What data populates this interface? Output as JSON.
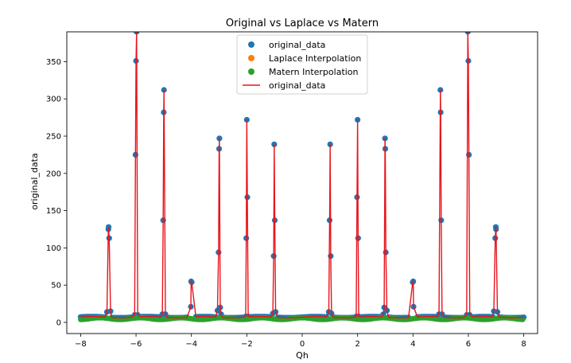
{
  "chart_data": {
    "type": "line",
    "title": "Original vs Laplace vs Matern",
    "xlabel": "Qh",
    "ylabel": "original_data",
    "xlim": [
      -8.5,
      8.5
    ],
    "ylim": [
      -15,
      390
    ],
    "x_ticks": [
      -8,
      -6,
      -4,
      -2,
      0,
      2,
      4,
      6,
      8
    ],
    "x_tick_labels": [
      "−8",
      "−6",
      "−4",
      "−2",
      "0",
      "2",
      "4",
      "6",
      "8"
    ],
    "y_ticks": [
      0,
      50,
      100,
      150,
      200,
      250,
      300,
      350
    ],
    "y_tick_labels": [
      "0",
      "50",
      "100",
      "150",
      "200",
      "250",
      "300",
      "350"
    ],
    "grid": false,
    "legend_position": "top-center",
    "baseline": 7,
    "peaks": [
      {
        "x": -7,
        "points": [
          [
            -7.05,
            14
          ],
          [
            -7.0,
            125
          ],
          [
            -6.99,
            128
          ],
          [
            -6.97,
            113
          ],
          [
            -6.92,
            15
          ]
        ]
      },
      {
        "x": -6,
        "points": [
          [
            -6.05,
            10
          ],
          [
            -6.02,
            225
          ],
          [
            -6.0,
            351
          ],
          [
            -5.98,
            390
          ],
          [
            -5.94,
            10
          ]
        ]
      },
      {
        "x": -5,
        "points": [
          [
            -5.05,
            11
          ],
          [
            -5.02,
            137
          ],
          [
            -5.0,
            282
          ],
          [
            -4.99,
            312
          ],
          [
            -4.94,
            11
          ]
        ]
      },
      {
        "x": -4,
        "points": [
          [
            -4.02,
            21
          ],
          [
            -4.01,
            55
          ],
          [
            -3.99,
            54
          ]
        ]
      },
      {
        "x": -3,
        "points": [
          [
            -3.06,
            16
          ],
          [
            -3.02,
            94
          ],
          [
            -3.0,
            233
          ],
          [
            -2.99,
            247
          ],
          [
            -2.96,
            20
          ],
          [
            -2.93,
            11
          ]
        ]
      },
      {
        "x": -2,
        "points": [
          [
            -2.04,
            8
          ],
          [
            -2.02,
            113
          ],
          [
            -2.0,
            272
          ],
          [
            -1.98,
            168
          ],
          [
            -1.95,
            8
          ]
        ]
      },
      {
        "x": -1,
        "points": [
          [
            -1.06,
            12
          ],
          [
            -1.03,
            89
          ],
          [
            -1.01,
            239
          ],
          [
            -0.99,
            137
          ],
          [
            -0.96,
            14
          ]
        ]
      },
      {
        "x": 1,
        "points": [
          [
            0.96,
            14
          ],
          [
            0.99,
            137
          ],
          [
            1.01,
            239
          ],
          [
            1.03,
            89
          ],
          [
            1.06,
            12
          ]
        ]
      },
      {
        "x": 2,
        "points": [
          [
            1.95,
            8
          ],
          [
            1.98,
            168
          ],
          [
            2.0,
            272
          ],
          [
            2.02,
            113
          ],
          [
            2.04,
            8
          ]
        ]
      },
      {
        "x": 3,
        "points": [
          [
            2.93,
            11
          ],
          [
            2.96,
            20
          ],
          [
            2.99,
            247
          ],
          [
            3.0,
            233
          ],
          [
            3.02,
            94
          ],
          [
            3.06,
            16
          ]
        ]
      },
      {
        "x": 4,
        "points": [
          [
            3.99,
            54
          ],
          [
            4.01,
            55
          ],
          [
            4.02,
            21
          ]
        ]
      },
      {
        "x": 5,
        "points": [
          [
            4.94,
            11
          ],
          [
            4.99,
            312
          ],
          [
            5.0,
            282
          ],
          [
            5.02,
            137
          ],
          [
            5.05,
            11
          ]
        ]
      },
      {
        "x": 6,
        "points": [
          [
            5.94,
            10
          ],
          [
            5.98,
            390
          ],
          [
            6.0,
            351
          ],
          [
            6.02,
            225
          ],
          [
            6.05,
            10
          ]
        ]
      },
      {
        "x": 7,
        "points": [
          [
            6.92,
            15
          ],
          [
            6.97,
            113
          ],
          [
            6.99,
            128
          ],
          [
            7.0,
            125
          ],
          [
            7.05,
            14
          ]
        ]
      }
    ],
    "series": [
      {
        "name": "original_data",
        "kind": "scatter",
        "color": "#1f77b4"
      },
      {
        "name": "Laplace Interpolation",
        "kind": "scatter",
        "color": "#ff7f0e"
      },
      {
        "name": "Matern Interpolation",
        "kind": "scatter",
        "color": "#2ca02c"
      },
      {
        "name": "original_data",
        "kind": "line",
        "color": "#e8141c"
      }
    ]
  }
}
